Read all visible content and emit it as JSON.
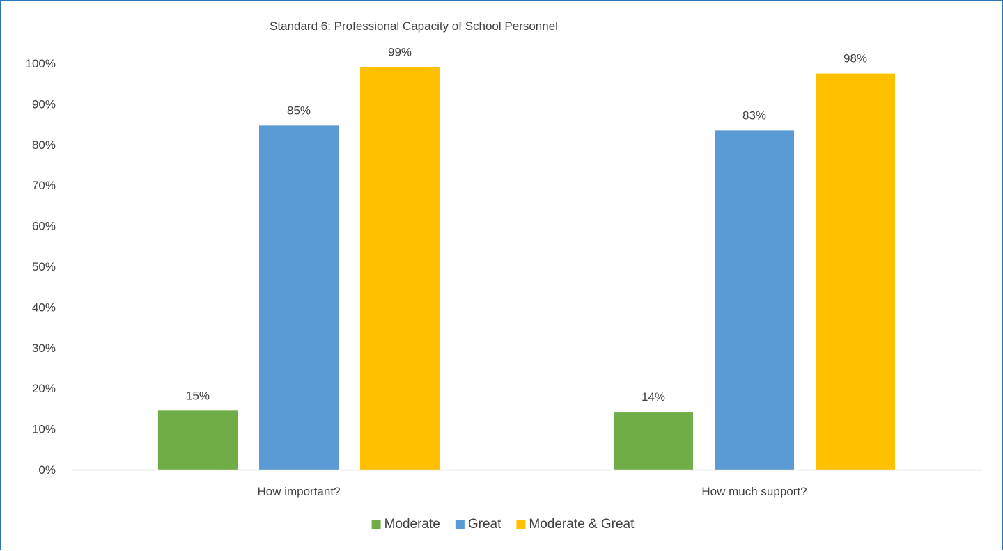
{
  "chart_data": {
    "type": "bar",
    "title": "Standard 6:  Professional Capacity of School Personnel",
    "categories": [
      "How important?",
      "How much support?"
    ],
    "series": [
      {
        "name": "Moderate",
        "color": "#70ad47",
        "values": [
          0.145,
          0.142
        ],
        "labels": [
          "15%",
          "14%"
        ]
      },
      {
        "name": "Great",
        "color": "#5b9bd5",
        "values": [
          0.847,
          0.835
        ],
        "labels": [
          "85%",
          "83%"
        ]
      },
      {
        "name": "Moderate & Great",
        "color": "#ffc000",
        "values": [
          0.991,
          0.975
        ],
        "labels": [
          "99%",
          "98%"
        ]
      }
    ],
    "ylim": [
      0,
      1
    ],
    "yticks": [
      "0%",
      "10%",
      "20%",
      "30%",
      "40%",
      "50%",
      "60%",
      "70%",
      "80%",
      "90%",
      "100%"
    ],
    "legend_position": "bottom",
    "grid": false,
    "border_color": "#2e75b6",
    "axis_color": "#d9d9d9",
    "text_color": "#404040"
  }
}
